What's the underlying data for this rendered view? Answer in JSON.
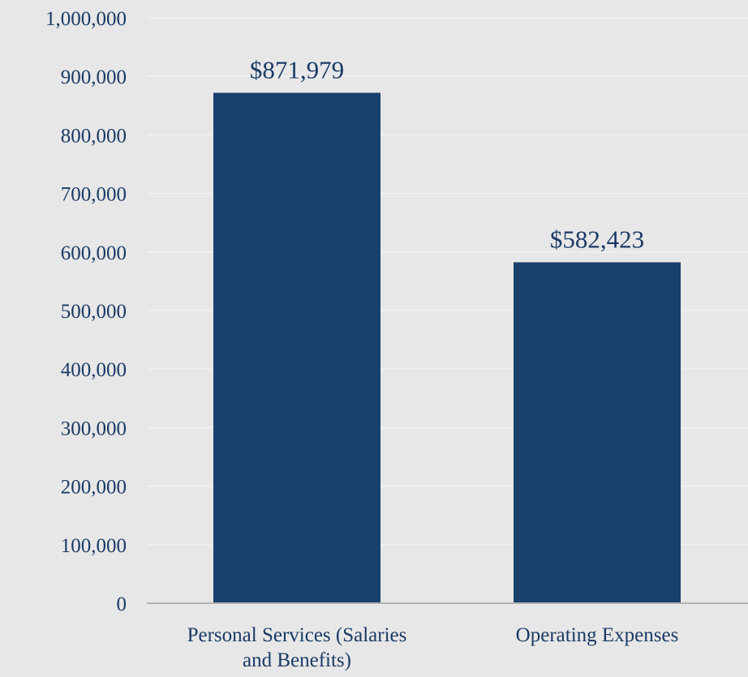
{
  "colors": {
    "background": "#e7e7e7",
    "bar": "#1a406c",
    "text": "#1a3a66",
    "gridline": "#f2f2f2",
    "axis": "#b3b3b3"
  },
  "chart_data": {
    "type": "bar",
    "categories": [
      "Personal Services (Salaries and Benefits)",
      "Operating Expenses"
    ],
    "category_lines": [
      [
        "Personal Services (Salaries",
        "and Benefits)"
      ],
      [
        "Operating Expenses"
      ]
    ],
    "values": [
      871979,
      582423
    ],
    "data_labels": [
      "$871,979",
      "$582,423"
    ],
    "ylim": [
      0,
      1000000
    ],
    "yticks": [
      0,
      100000,
      200000,
      300000,
      400000,
      500000,
      600000,
      700000,
      800000,
      900000,
      1000000
    ],
    "ytick_labels": [
      "0",
      "100,000",
      "200,000",
      "300,000",
      "400,000",
      "500,000",
      "600,000",
      "700,000",
      "800,000",
      "900,000",
      "1,000,000"
    ],
    "grid": true,
    "legend": false,
    "title": "",
    "xlabel": "",
    "ylabel": ""
  }
}
